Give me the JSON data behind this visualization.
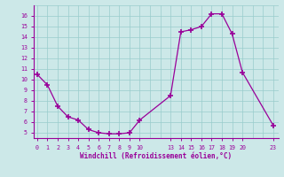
{
  "x": [
    0,
    1,
    2,
    3,
    4,
    5,
    6,
    7,
    8,
    9,
    10,
    13,
    14,
    15,
    16,
    17,
    18,
    19,
    20,
    23
  ],
  "y": [
    10.5,
    9.5,
    7.5,
    6.5,
    6.2,
    5.3,
    5.0,
    4.9,
    4.9,
    5.0,
    6.2,
    8.5,
    14.5,
    14.7,
    15.0,
    16.2,
    16.2,
    14.3,
    10.7,
    5.7
  ],
  "line_color": "#990099",
  "marker_color": "#990099",
  "bg_color": "#cce8e8",
  "grid_color": "#99cccc",
  "axis_label_color": "#990099",
  "tick_label_color": "#990099",
  "xlabel": "Windchill (Refroidissement éolien,°C)",
  "xticks": [
    0,
    1,
    2,
    3,
    4,
    5,
    6,
    7,
    8,
    9,
    10,
    13,
    14,
    15,
    16,
    17,
    18,
    19,
    20,
    23
  ],
  "yticks": [
    5,
    6,
    7,
    8,
    9,
    10,
    11,
    12,
    13,
    14,
    15,
    16
  ],
  "ylim": [
    4.5,
    17.0
  ],
  "xlim": [
    -0.3,
    23.5
  ]
}
